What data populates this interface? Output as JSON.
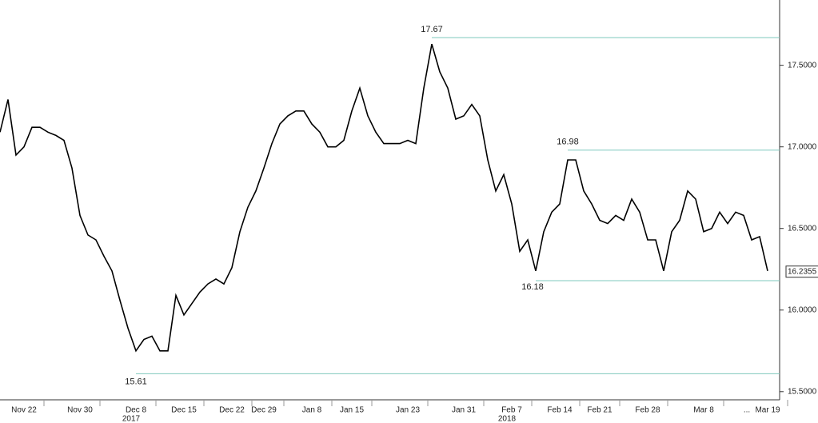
{
  "chart_data": {
    "type": "line",
    "color": "#000000",
    "reference_color": "#7fc8bd",
    "categories": [
      null,
      null,
      null,
      "Nov 22",
      null,
      null,
      null,
      null,
      null,
      null,
      "Nov 30",
      null,
      null,
      null,
      null,
      null,
      null,
      "Dec 8",
      null,
      null,
      null,
      null,
      null,
      "Dec 15",
      null,
      null,
      null,
      null,
      null,
      "Dec 22",
      null,
      null,
      null,
      "Dec 29",
      null,
      null,
      null,
      null,
      null,
      "Jan 8",
      null,
      null,
      null,
      null,
      "Jan 15",
      null,
      null,
      null,
      null,
      null,
      null,
      "Jan 23",
      null,
      null,
      null,
      null,
      null,
      null,
      "Jan 31",
      null,
      null,
      null,
      null,
      null,
      "Feb 7",
      null,
      null,
      null,
      null,
      null,
      "Feb 14",
      null,
      null,
      null,
      null,
      "Feb 21",
      null,
      null,
      null,
      null,
      null,
      "Feb 28",
      null,
      null,
      null,
      null,
      null,
      null,
      "Mar 8",
      null,
      null,
      null,
      null,
      null,
      null,
      null,
      "Mar 19"
    ],
    "values": [
      17.09,
      17.29,
      16.95,
      17.0,
      17.12,
      17.12,
      17.09,
      17.07,
      17.04,
      16.87,
      16.58,
      16.46,
      16.43,
      16.33,
      16.24,
      16.06,
      15.89,
      15.75,
      15.82,
      15.84,
      15.75,
      15.75,
      16.09,
      15.97,
      16.04,
      16.11,
      16.16,
      16.19,
      16.16,
      16.26,
      16.48,
      16.63,
      16.73,
      16.87,
      17.02,
      17.14,
      17.19,
      17.22,
      17.22,
      17.14,
      17.09,
      17.0,
      17.0,
      17.04,
      17.22,
      17.36,
      17.19,
      17.09,
      17.02,
      17.02,
      17.02,
      17.04,
      17.02,
      17.36,
      17.63,
      17.46,
      17.36,
      17.17,
      17.19,
      17.26,
      17.19,
      16.92,
      16.73,
      16.83,
      16.65,
      16.36,
      16.43,
      16.24,
      16.48,
      16.6,
      16.65,
      16.92,
      16.92,
      16.73,
      16.65,
      16.55,
      16.53,
      16.58,
      16.55,
      16.68,
      16.6,
      16.43,
      16.43,
      16.24,
      16.48,
      16.55,
      16.73,
      16.68,
      16.48,
      16.5,
      16.6,
      16.53,
      16.6,
      16.58,
      16.43,
      16.45,
      16.24
    ],
    "years": [
      {
        "year": 2017,
        "category": "Dec 8"
      },
      {
        "year": 2018,
        "category": "Feb 7"
      }
    ],
    "gap_marker": "...",
    "reference_lines": [
      17.67,
      16.98,
      16.18,
      15.61
    ],
    "last_value": 16.2355,
    "ylim": [
      15.45,
      17.9
    ],
    "yticks": [
      {
        "value": 15.5,
        "label": "15.5000"
      },
      {
        "value": 16,
        "label": "16.0000"
      },
      {
        "value": 16.5,
        "label": "16.5000"
      },
      {
        "value": 17,
        "label": "17.0000"
      },
      {
        "value": 17.5,
        "label": "17.5000"
      }
    ]
  }
}
